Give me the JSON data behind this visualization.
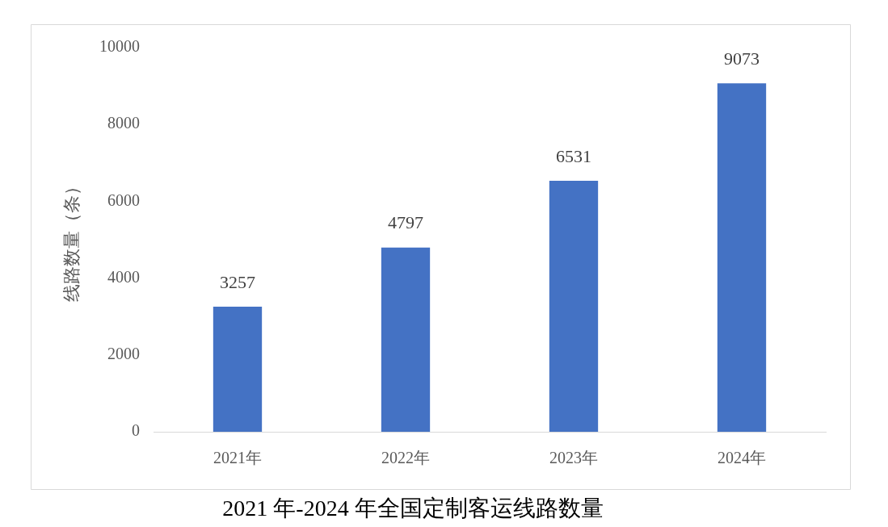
{
  "chart_data": {
    "type": "bar",
    "title": "2021 年-2024 年全国定制客运线路数量",
    "ylabel": "线路数量（条）",
    "categories": [
      "2021年",
      "2022年",
      "2023年",
      "2024年"
    ],
    "values": [
      3257,
      4797,
      6531,
      9073
    ],
    "color": "#4472c4",
    "ylim": [
      0,
      10000
    ],
    "yticks": [
      0,
      2000,
      4000,
      6000,
      8000,
      10000
    ],
    "grid": false,
    "legend": false,
    "data_labels": true
  }
}
